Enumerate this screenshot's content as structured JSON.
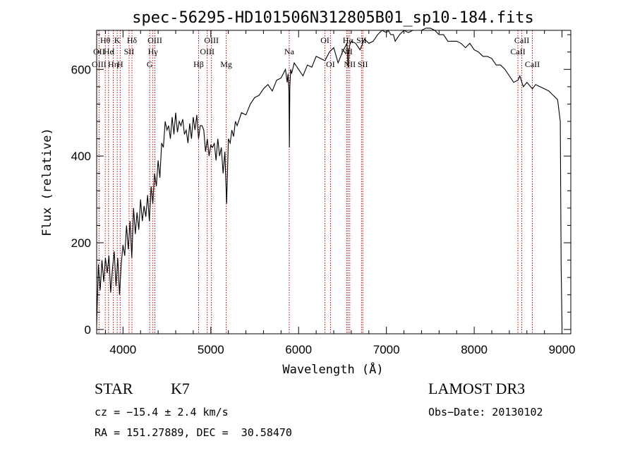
{
  "chart_data": {
    "type": "line",
    "title": "spec-56295-HD101506N312805B01_sp10-184.fits",
    "xlabel": "Wavelength (Å)",
    "ylabel": "Flux (relative)",
    "xlim": [
      3700,
      9100
    ],
    "ylim": [
      -10,
      690
    ],
    "xticks": [
      4000,
      5000,
      6000,
      7000,
      8000,
      9000
    ],
    "yticks": [
      0,
      200,
      400,
      600
    ],
    "series": [
      {
        "name": "flux",
        "x": [
          3700,
          3720,
          3740,
          3760,
          3780,
          3800,
          3820,
          3840,
          3860,
          3880,
          3900,
          3920,
          3940,
          3960,
          3980,
          4000,
          4020,
          4040,
          4060,
          4080,
          4100,
          4120,
          4140,
          4160,
          4180,
          4200,
          4220,
          4240,
          4260,
          4280,
          4300,
          4320,
          4340,
          4360,
          4380,
          4400,
          4420,
          4440,
          4460,
          4480,
          4500,
          4520,
          4540,
          4560,
          4580,
          4600,
          4620,
          4640,
          4660,
          4680,
          4700,
          4720,
          4740,
          4760,
          4780,
          4800,
          4820,
          4840,
          4860,
          4880,
          4900,
          4920,
          4940,
          4960,
          4980,
          5000,
          5020,
          5040,
          5060,
          5080,
          5100,
          5120,
          5140,
          5160,
          5180,
          5200,
          5220,
          5240,
          5260,
          5280,
          5300,
          5350,
          5400,
          5450,
          5500,
          5550,
          5600,
          5650,
          5700,
          5750,
          5800,
          5850,
          5870,
          5880,
          5890,
          5895,
          5900,
          5910,
          5920,
          5950,
          6000,
          6050,
          6100,
          6150,
          6200,
          6250,
          6300,
          6350,
          6400,
          6450,
          6500,
          6550,
          6563,
          6580,
          6600,
          6650,
          6700,
          6750,
          6800,
          6850,
          6900,
          6950,
          7000,
          7020,
          7050,
          7080,
          7100,
          7150,
          7200,
          7250,
          7300,
          7350,
          7400,
          7450,
          7500,
          7550,
          7600,
          7650,
          7700,
          7750,
          7800,
          7850,
          7900,
          7950,
          8000,
          8050,
          8100,
          8150,
          8200,
          8250,
          8300,
          8350,
          8400,
          8450,
          8498,
          8520,
          8542,
          8560,
          8600,
          8662,
          8700,
          8750,
          8800,
          8850,
          8900,
          8950,
          8980,
          8990,
          9000
        ],
        "values": [
          10,
          150,
          90,
          160,
          110,
          165,
          130,
          170,
          85,
          140,
          180,
          100,
          165,
          80,
          150,
          195,
          170,
          240,
          185,
          250,
          165,
          280,
          220,
          270,
          230,
          300,
          250,
          285,
          260,
          310,
          250,
          330,
          290,
          360,
          330,
          390,
          350,
          430,
          420,
          480,
          460,
          470,
          440,
          490,
          450,
          500,
          455,
          480,
          470,
          485,
          450,
          460,
          430,
          475,
          440,
          490,
          460,
          495,
          440,
          470,
          470,
          460,
          410,
          440,
          400,
          425,
          420,
          430,
          390,
          440,
          400,
          420,
          360,
          410,
          290,
          440,
          430,
          460,
          445,
          480,
          470,
          500,
          495,
          520,
          535,
          540,
          555,
          565,
          550,
          575,
          580,
          600,
          570,
          590,
          550,
          420,
          560,
          600,
          590,
          615,
          600,
          585,
          610,
          605,
          630,
          625,
          620,
          640,
          650,
          615,
          640,
          660,
          605,
          655,
          665,
          660,
          645,
          670,
          660,
          665,
          680,
          690,
          685,
          690,
          680,
          680,
          665,
          680,
          690,
          685,
          690,
          690,
          690,
          695,
          695,
          690,
          680,
          680,
          665,
          665,
          665,
          660,
          650,
          660,
          645,
          640,
          630,
          630,
          625,
          610,
          610,
          600,
          585,
          570,
          575,
          585,
          570,
          560,
          570,
          555,
          565,
          560,
          555,
          550,
          540,
          530,
          480,
          150,
          0
        ]
      }
    ],
    "line_markers": [
      {
        "label": "Hθ",
        "wavelength": 3798,
        "row": 1
      },
      {
        "label": "OII",
        "wavelength": 3727,
        "row": 2
      },
      {
        "label": "OIII",
        "wavelength": 3727,
        "row": 3
      },
      {
        "label": "He",
        "wavelength": 3835,
        "row": 2
      },
      {
        "label": "Hη",
        "wavelength": 3889,
        "row": 3
      },
      {
        "label": "K",
        "wavelength": 3934,
        "row": 1
      },
      {
        "label": "I",
        "wavelength": 3890,
        "row": 2
      },
      {
        "label": "SII",
        "wavelength": 4069,
        "row": 2
      },
      {
        "label": "H",
        "wavelength": 3968,
        "row": 3
      },
      {
        "label": "Hδ",
        "wavelength": 4102,
        "row": 1
      },
      {
        "label": "OIII",
        "wavelength": 4363,
        "row": 1
      },
      {
        "label": "Hγ",
        "wavelength": 4340,
        "row": 2
      },
      {
        "label": "G",
        "wavelength": 4304,
        "row": 3
      },
      {
        "label": "OIII",
        "wavelength": 5007,
        "row": 1
      },
      {
        "label": "OIII",
        "wavelength": 4959,
        "row": 2
      },
      {
        "label": "Hβ",
        "wavelength": 4861,
        "row": 3
      },
      {
        "label": "Mg",
        "wavelength": 5175,
        "row": 3
      },
      {
        "label": "Na",
        "wavelength": 5893,
        "row": 2
      },
      {
        "label": "OI",
        "wavelength": 6300,
        "row": 1
      },
      {
        "label": "OI",
        "wavelength": 6363,
        "row": 3
      },
      {
        "label": "Hα",
        "wavelength": 6563,
        "row": 1
      },
      {
        "label": "SII",
        "wavelength": 6716,
        "row": 1
      },
      {
        "label": "NII",
        "wavelength": 6548,
        "row": 2
      },
      {
        "label": "NII",
        "wavelength": 6583,
        "row": 3
      },
      {
        "label": "SII",
        "wavelength": 6731,
        "row": 3
      },
      {
        "label": "CaII",
        "wavelength": 8542,
        "row": 1
      },
      {
        "label": "CaII",
        "wavelength": 8498,
        "row": 2
      },
      {
        "label": "CaII",
        "wavelength": 8662,
        "row": 3
      }
    ]
  },
  "info": {
    "class": "STAR",
    "subclass": "K7",
    "survey": "LAMOST DR3",
    "velocity": "cz = −15.4 ± 2.4 km/s",
    "obs_date": "Obs−Date: 20130102",
    "coords": "RA = 151.27889, DEC =  30.58470"
  },
  "colors": {
    "marker": "#cc0000",
    "spectrum": "#000000"
  }
}
